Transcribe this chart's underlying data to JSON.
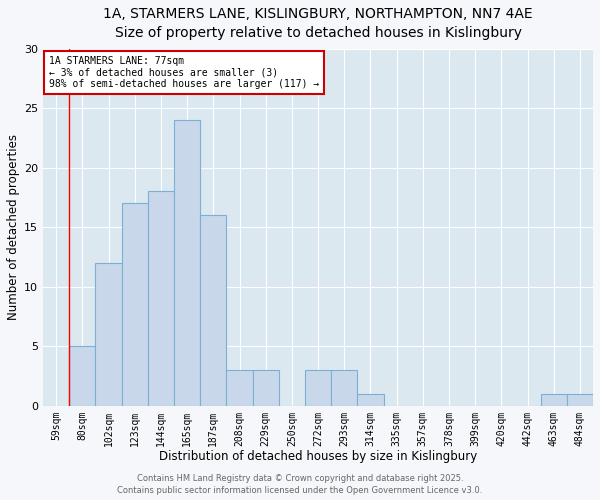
{
  "title_line1": "1A, STARMERS LANE, KISLINGBURY, NORTHAMPTON, NN7 4AE",
  "title_line2": "Size of property relative to detached houses in Kislingbury",
  "xlabel": "Distribution of detached houses by size in Kislingbury",
  "ylabel": "Number of detached properties",
  "categories": [
    "59sqm",
    "80sqm",
    "102sqm",
    "123sqm",
    "144sqm",
    "165sqm",
    "187sqm",
    "208sqm",
    "229sqm",
    "250sqm",
    "272sqm",
    "293sqm",
    "314sqm",
    "335sqm",
    "357sqm",
    "378sqm",
    "399sqm",
    "420sqm",
    "442sqm",
    "463sqm",
    "484sqm"
  ],
  "values": [
    0,
    5,
    12,
    17,
    18,
    24,
    16,
    3,
    3,
    0,
    3,
    3,
    1,
    0,
    0,
    0,
    0,
    0,
    0,
    1,
    1
  ],
  "bar_color": "#c8d8ea",
  "bar_edge_color": "#7bafd4",
  "bar_linewidth": 0.8,
  "ylim": [
    0,
    30
  ],
  "yticks": [
    0,
    5,
    10,
    15,
    20,
    25,
    30
  ],
  "red_line_x": 1,
  "annotation_text": "1A STARMERS LANE: 77sqm\n← 3% of detached houses are smaller (3)\n98% of semi-detached houses are larger (117) →",
  "annotation_box_color": "#ffffff",
  "annotation_box_edge": "#cc0000",
  "footer_line1": "Contains HM Land Registry data © Crown copyright and database right 2025.",
  "footer_line2": "Contains public sector information licensed under the Open Government Licence v3.0.",
  "bg_color": "#f5f7fa",
  "plot_bg_color": "#dce8f0",
  "grid_color": "#ffffff",
  "title_fontsize": 10,
  "subtitle_fontsize": 9.5,
  "axis_label_fontsize": 8.5,
  "tick_fontsize": 7,
  "annotation_fontsize": 7,
  "footer_fontsize": 6
}
